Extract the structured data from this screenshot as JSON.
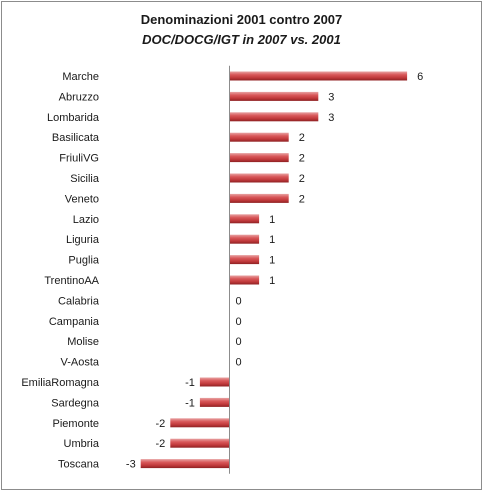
{
  "chart_data": {
    "type": "bar",
    "orientation": "horizontal",
    "title": "Denominazioni 2001 contro 2007",
    "subtitle": "DOC/DOCG/IGT in 2007 vs. 2001",
    "categories": [
      "Marche",
      "Abruzzo",
      "Lombarida",
      "Basilicata",
      "FriuliVG",
      "Sicilia",
      "Veneto",
      "Lazio",
      "Liguria",
      "Puglia",
      "TrentinoAA",
      "Calabria",
      "Campania",
      "Molise",
      "V-Aosta",
      "EmiliaRomagna",
      "Sardegna",
      "Piemonte",
      "Umbria",
      "Toscana"
    ],
    "values": [
      6,
      3,
      3,
      2,
      2,
      2,
      2,
      1,
      1,
      1,
      1,
      0,
      0,
      0,
      0,
      -1,
      -1,
      -2,
      -2,
      -3
    ],
    "xlim": [
      -3,
      6
    ],
    "grid": false,
    "legend": "none",
    "bar_color": "#c0393b"
  }
}
